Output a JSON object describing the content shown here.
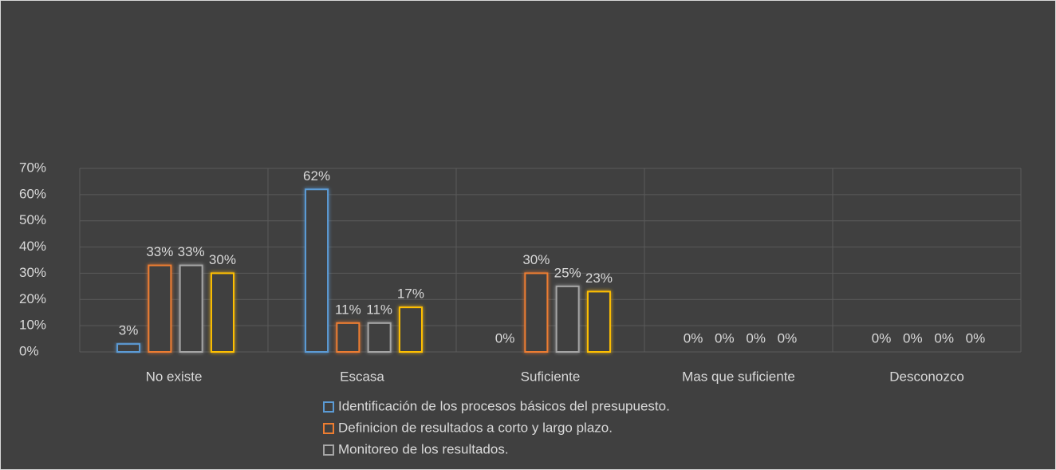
{
  "chart_data": {
    "type": "bar",
    "categories": [
      "No existe",
      "Escasa",
      "Suficiente",
      "Mas que suficiente",
      "Desconozco"
    ],
    "series": [
      {
        "name": "Identificación de los procesos básicos del presupuesto.",
        "color": "#5b9bd5",
        "values": [
          3,
          62,
          0,
          0,
          0
        ],
        "value_labels": [
          "3%",
          "62%",
          "0%",
          "0%",
          "0%"
        ]
      },
      {
        "name": "Definicion de resultados a corto y largo plazo.",
        "color": "#ed7d31",
        "values": [
          33,
          11,
          30,
          0,
          0
        ],
        "value_labels": [
          "33%",
          "11%",
          "30%",
          "0%",
          "0%"
        ]
      },
      {
        "name": "Monitoreo de los resultados.",
        "color": "#a5a5a5",
        "values": [
          33,
          11,
          25,
          0,
          0
        ],
        "value_labels": [
          "33%",
          "11%",
          "25%",
          "0%",
          "0%"
        ]
      },
      {
        "color": "#ffc000",
        "values": [
          30,
          17,
          23,
          0,
          0
        ],
        "value_labels": [
          "30%",
          "17%",
          "23%",
          "0%",
          "0%"
        ]
      }
    ],
    "ylim": [
      0,
      70
    ],
    "yticks": [
      {
        "value": 0,
        "label": "0%"
      },
      {
        "value": 10,
        "label": "10%"
      },
      {
        "value": 20,
        "label": "20%"
      },
      {
        "value": 30,
        "label": "30%"
      },
      {
        "value": 40,
        "label": "40%"
      },
      {
        "value": 50,
        "label": "50%"
      },
      {
        "value": 60,
        "label": "60%"
      },
      {
        "value": 70,
        "label": "70%"
      }
    ],
    "grid": true
  }
}
